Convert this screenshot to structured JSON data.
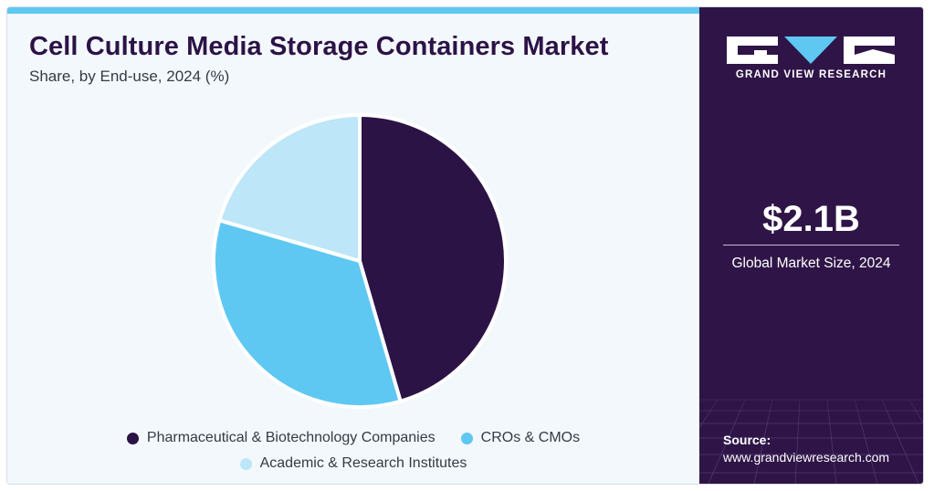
{
  "header": {
    "title": "Cell Culture Media Storage Containers Market",
    "subtitle": "Share, by End-use, 2024 (%)"
  },
  "chart_data": {
    "type": "pie",
    "title": "Cell Culture Media Storage Containers Market",
    "subtitle": "Share, by End-use, 2024 (%)",
    "legend_position": "bottom",
    "slices": [
      {
        "name": "Pharmaceutical & Biotechnology Companies",
        "value": 45.5,
        "color": "#2c1346"
      },
      {
        "name": "CROs & CMOs",
        "value": 34.0,
        "color": "#5ec8f2"
      },
      {
        "name": "Academic & Research Institutes",
        "value": 20.5,
        "color": "#bde6f8"
      }
    ]
  },
  "sidebar": {
    "brand": "GRAND VIEW RESEARCH",
    "market_size_value": "$2.1B",
    "market_size_caption": "Global Market Size, 2024",
    "source_label": "Source:",
    "source_url": "www.grandviewresearch.com",
    "background_color": "#2f1547",
    "accent_color": "#5ec8f2"
  }
}
